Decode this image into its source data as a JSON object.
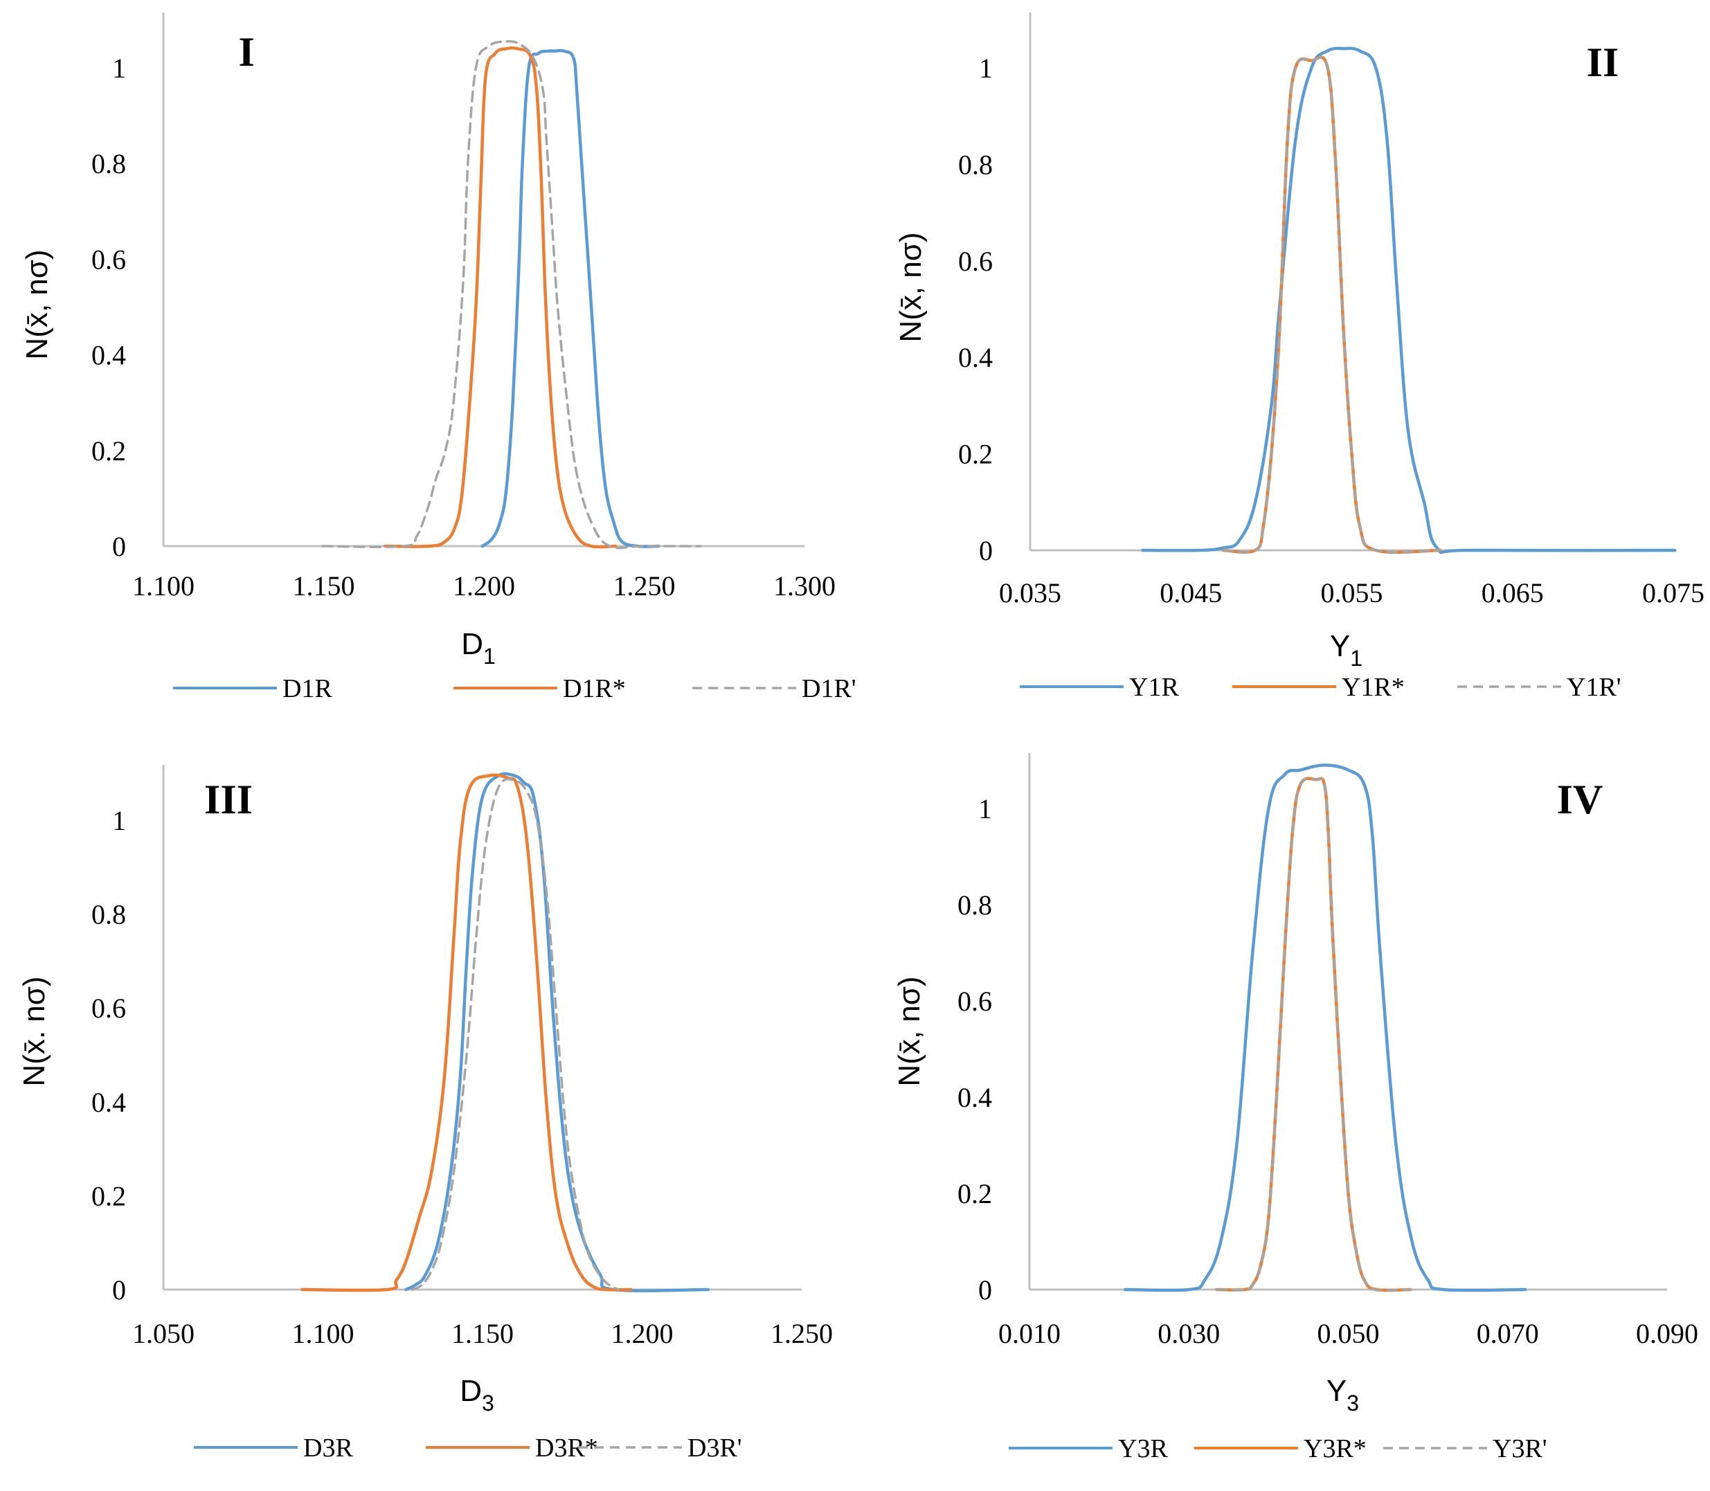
{
  "figure": {
    "colors": {
      "series1": "#5b9bd5",
      "series2": "#ed7d31",
      "series3": "#a5a5a5",
      "axis": "#bfbfbf"
    }
  },
  "chart_data": [
    {
      "type": "line",
      "panel_label": "I",
      "xlabel": "D",
      "xlabel_sub": "1",
      "ylabel": "N(x̄, nσ)",
      "ylabel_sep": ",",
      "xlim": [
        1.1,
        1.3
      ],
      "ylim": [
        0,
        1.1
      ],
      "xticks": [
        "1.100",
        "1.150",
        "1.200",
        "1.250",
        "1.300"
      ],
      "yticks": [
        "0",
        "0.2",
        "0.4",
        "0.6",
        "0.8",
        "1"
      ],
      "series": [
        {
          "name": "D1R",
          "style": "solid",
          "color": "series1",
          "x": [
            1.1995,
            1.2025,
            1.205,
            1.207,
            1.209,
            1.211,
            1.212,
            1.214,
            1.217,
            1.22,
            1.222,
            1.225,
            1.228,
            1.229,
            1.231,
            1.234,
            1.236,
            1.238,
            1.2405,
            1.243,
            1.248,
            1.2545
          ],
          "y": [
            0,
            0.015,
            0.05,
            0.12,
            0.3,
            0.6,
            0.8,
            1.0,
            1.03,
            1.035,
            1.035,
            1.035,
            1.02,
            0.95,
            0.75,
            0.45,
            0.25,
            0.12,
            0.05,
            0.01,
            0,
            0
          ]
        },
        {
          "name": "D1R*",
          "style": "solid",
          "color": "series2",
          "x": [
            1.1692,
            1.183,
            1.188,
            1.191,
            1.193,
            1.195,
            1.1975,
            1.199,
            1.2005,
            1.2035,
            1.207,
            1.2105,
            1.2145,
            1.2165,
            1.218,
            1.219,
            1.2205,
            1.2225,
            1.225,
            1.229,
            1.2335,
            1.241
          ],
          "y": [
            0,
            0,
            0.01,
            0.04,
            0.1,
            0.25,
            0.5,
            0.75,
            0.98,
            1.03,
            1.04,
            1.04,
            1.025,
            0.95,
            0.75,
            0.55,
            0.35,
            0.18,
            0.08,
            0.02,
            0,
            0
          ]
        },
        {
          "name": "D1R'",
          "style": "dashed",
          "color": "series3",
          "x": [
            1.1497,
            1.175,
            1.179,
            1.1825,
            1.185,
            1.188,
            1.1905,
            1.1935,
            1.195,
            1.1975,
            1.2015,
            1.2065,
            1.211,
            1.2155,
            1.2185,
            1.2195,
            1.2215,
            1.223,
            1.226,
            1.229,
            1.2335,
            1.2392,
            1.2495,
            1.2676
          ],
          "y": [
            0,
            0,
            0.02,
            0.08,
            0.14,
            0.2,
            0.3,
            0.55,
            0.8,
            1.0,
            1.045,
            1.055,
            1.05,
            1.02,
            0.95,
            0.85,
            0.65,
            0.5,
            0.3,
            0.15,
            0.05,
            0,
            0,
            0
          ]
        }
      ]
    },
    {
      "type": "line",
      "panel_label": "II",
      "xlabel": "Y",
      "xlabel_sub": "1",
      "ylabel": "N(x̄, nσ)",
      "ylabel_sep": ",",
      "xlim": [
        0.035,
        0.075
      ],
      "ylim": [
        0,
        1.1
      ],
      "xticks": [
        "0.035",
        "0.045",
        "0.055",
        "0.065",
        "0.075"
      ],
      "yticks": [
        "0",
        "0.2",
        "0.4",
        "0.6",
        "0.8",
        "1"
      ],
      "series": [
        {
          "name": "Y1R",
          "style": "solid",
          "color": "series1",
          "x": [
            0.042,
            0.0455,
            0.047,
            0.048,
            0.049,
            0.05,
            0.0505,
            0.0515,
            0.0525,
            0.0535,
            0.0545,
            0.0555,
            0.0565,
            0.0572,
            0.0578,
            0.0585,
            0.0595,
            0.0603,
            0.0625,
            0.0751
          ],
          "y": [
            0,
            0,
            0.005,
            0.02,
            0.1,
            0.3,
            0.5,
            0.85,
            1.0,
            1.035,
            1.04,
            1.035,
            1.0,
            0.85,
            0.55,
            0.25,
            0.1,
            0.005,
            0,
            0
          ]
        },
        {
          "name": "Y1R*",
          "style": "solid",
          "color": "series2",
          "x": [
            0.047,
            0.049,
            0.0495,
            0.05,
            0.0505,
            0.051,
            0.0515,
            0.0525,
            0.0535,
            0.054,
            0.0545,
            0.055,
            0.0555,
            0.0565,
            0.0605
          ],
          "y": [
            0,
            0,
            0.05,
            0.2,
            0.45,
            0.85,
            1.0,
            1.015,
            1.0,
            0.8,
            0.45,
            0.2,
            0.05,
            0,
            0
          ]
        },
        {
          "name": "Y1R'",
          "style": "dashed",
          "color": "series3",
          "x": [
            0.047,
            0.049,
            0.0495,
            0.05,
            0.0505,
            0.051,
            0.0515,
            0.0525,
            0.0535,
            0.054,
            0.0545,
            0.055,
            0.0555,
            0.0565,
            0.0605
          ],
          "y": [
            0,
            0,
            0.05,
            0.2,
            0.45,
            0.85,
            1.0,
            1.015,
            1.0,
            0.8,
            0.45,
            0.2,
            0.05,
            0,
            0
          ]
        }
      ]
    },
    {
      "type": "line",
      "panel_label": "III",
      "xlabel": "D",
      "xlabel_sub": "3",
      "ylabel": "N(x̄. nσ)",
      "ylabel_sep": ".",
      "xlim": [
        1.05,
        1.25
      ],
      "ylim": [
        0,
        1.1
      ],
      "xticks": [
        "1.050",
        "1.100",
        "1.150",
        "1.200",
        "1.250"
      ],
      "yticks": [
        "0",
        "0.2",
        "0.4",
        "0.6",
        "0.8",
        "1"
      ],
      "series": [
        {
          "name": "D3R",
          "style": "solid",
          "color": "series1",
          "x": [
            1.126,
            1.129,
            1.132,
            1.136,
            1.14,
            1.143,
            1.145,
            1.147,
            1.15,
            1.155,
            1.16,
            1.163,
            1.166,
            1.169,
            1.172,
            1.175,
            1.178,
            1.182,
            1.187,
            1.191,
            1.2207
          ],
          "y": [
            0,
            0.01,
            0.03,
            0.1,
            0.25,
            0.45,
            0.7,
            0.9,
            1.05,
            1.095,
            1.095,
            1.08,
            1.05,
            0.9,
            0.6,
            0.35,
            0.2,
            0.1,
            0.03,
            0,
            0
          ]
        },
        {
          "name": "D3R*",
          "style": "solid",
          "color": "series2",
          "x": [
            1.0935,
            1.12,
            1.123,
            1.126,
            1.13,
            1.134,
            1.138,
            1.141,
            1.143,
            1.146,
            1.152,
            1.158,
            1.161,
            1.164,
            1.167,
            1.17,
            1.173,
            1.177,
            1.181,
            1.185,
            1.189,
            1.1965
          ],
          "y": [
            0,
            0,
            0.02,
            0.06,
            0.15,
            0.25,
            0.45,
            0.75,
            0.95,
            1.07,
            1.095,
            1.09,
            1.07,
            0.95,
            0.7,
            0.4,
            0.2,
            0.09,
            0.03,
            0.005,
            0,
            0
          ]
        },
        {
          "name": "D3R'",
          "style": "dashed",
          "color": "series3",
          "x": [
            1.128,
            1.131,
            1.134,
            1.137,
            1.141,
            1.145,
            1.148,
            1.151,
            1.155,
            1.16,
            1.164,
            1.167,
            1.17,
            1.173,
            1.176,
            1.179,
            1.183,
            1.188,
            1.1925
          ],
          "y": [
            0,
            0.01,
            0.04,
            0.1,
            0.25,
            0.5,
            0.75,
            0.95,
            1.07,
            1.085,
            1.06,
            1.0,
            0.85,
            0.6,
            0.35,
            0.2,
            0.08,
            0.02,
            0
          ]
        }
      ]
    },
    {
      "type": "line",
      "panel_label": "IV",
      "xlabel": "Y",
      "xlabel_sub": "3",
      "ylabel": "N(x̄, nσ)",
      "ylabel_sep": ",",
      "xlim": [
        0.01,
        0.09
      ],
      "ylim": [
        0,
        1.1
      ],
      "xticks": [
        "0.010",
        "0.030",
        "0.050",
        "0.070",
        "0.090"
      ],
      "yticks": [
        "0",
        "0.2",
        "0.4",
        "0.6",
        "0.8",
        "1"
      ],
      "series": [
        {
          "name": "Y3R",
          "style": "solid",
          "color": "series1",
          "x": [
            0.022,
            0.03,
            0.032,
            0.034,
            0.036,
            0.038,
            0.04,
            0.042,
            0.044,
            0.047,
            0.05,
            0.052,
            0.053,
            0.054,
            0.056,
            0.058,
            0.06,
            0.062,
            0.0722
          ],
          "y": [
            0,
            0,
            0.02,
            0.1,
            0.3,
            0.7,
            1.0,
            1.07,
            1.08,
            1.09,
            1.08,
            1.05,
            0.95,
            0.7,
            0.3,
            0.1,
            0.02,
            0,
            0
          ]
        },
        {
          "name": "Y3R*",
          "style": "solid",
          "color": "series2",
          "x": [
            0.0335,
            0.037,
            0.038,
            0.039,
            0.04,
            0.041,
            0.042,
            0.043,
            0.044,
            0.046,
            0.047,
            0.0475,
            0.048,
            0.049,
            0.05,
            0.051,
            0.052,
            0.0535,
            0.0578
          ],
          "y": [
            0,
            0,
            0.01,
            0.05,
            0.15,
            0.4,
            0.7,
            0.95,
            1.05,
            1.06,
            1.05,
            0.95,
            0.75,
            0.45,
            0.2,
            0.08,
            0.02,
            0,
            0
          ]
        },
        {
          "name": "Y3R'",
          "style": "dashed",
          "color": "series3",
          "x": [
            0.0335,
            0.037,
            0.038,
            0.039,
            0.04,
            0.041,
            0.042,
            0.043,
            0.044,
            0.046,
            0.047,
            0.0475,
            0.048,
            0.049,
            0.05,
            0.051,
            0.052,
            0.0535,
            0.0578
          ],
          "y": [
            0,
            0,
            0.01,
            0.05,
            0.15,
            0.4,
            0.7,
            0.95,
            1.05,
            1.06,
            1.05,
            0.95,
            0.75,
            0.45,
            0.2,
            0.08,
            0.02,
            0,
            0
          ]
        }
      ]
    }
  ]
}
